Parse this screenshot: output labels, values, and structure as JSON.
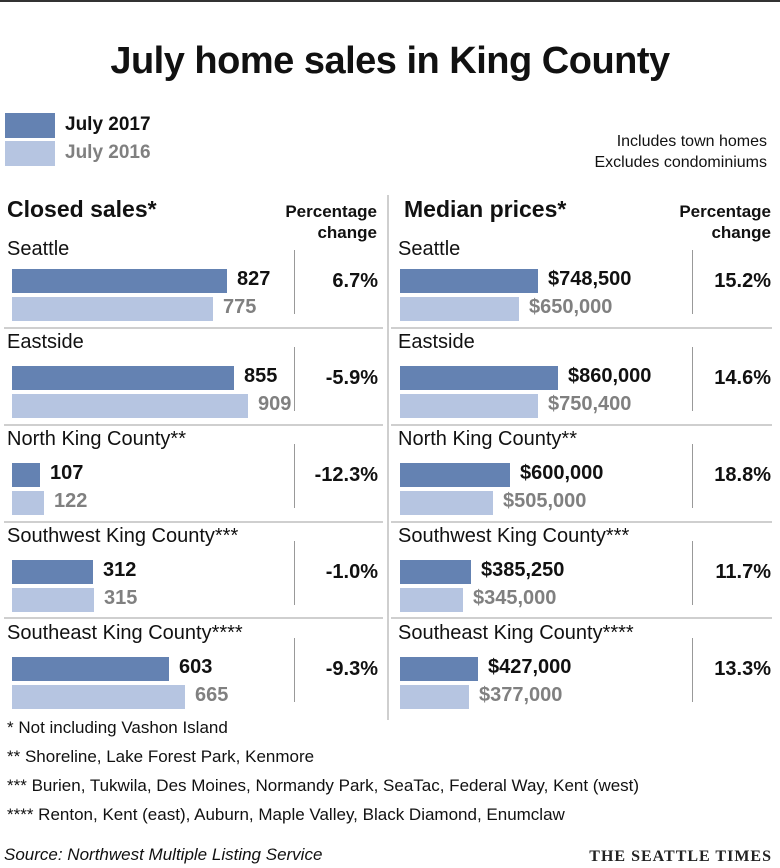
{
  "title": "July home sales in King County",
  "legend": [
    {
      "label": "July 2017",
      "color": "#6482b2",
      "text_color": "#111111"
    },
    {
      "label": "July 2016",
      "color": "#b6c5e1",
      "text_color": "#808080"
    }
  ],
  "notes": [
    "Includes town homes",
    "Excludes condominiums"
  ],
  "percentage_header": [
    "Percentage",
    "change"
  ],
  "chart_data": [
    {
      "type": "bar",
      "orientation": "horizontal",
      "title": "Closed sales*",
      "categories": [
        "Seattle",
        "Eastside",
        "North King County**",
        "Southwest King County***",
        "Southeast King County****"
      ],
      "series": [
        {
          "name": "July 2017",
          "values": [
            827,
            855,
            107,
            312,
            603
          ],
          "labels": [
            "827",
            "855",
            "107",
            "312",
            "603"
          ]
        },
        {
          "name": "July 2016",
          "values": [
            775,
            909,
            122,
            315,
            665
          ],
          "labels": [
            "775",
            "909",
            "122",
            "315",
            "665"
          ]
        }
      ],
      "percentage_change": [
        "6.7%",
        "-5.9%",
        "-12.3%",
        "-1.0%",
        "-9.3%"
      ],
      "xlim": [
        0,
        909
      ]
    },
    {
      "type": "bar",
      "orientation": "horizontal",
      "title": "Median prices*",
      "categories": [
        "Seattle",
        "Eastside",
        "North King County**",
        "Southwest King County***",
        "Southeast King County****"
      ],
      "series": [
        {
          "name": "July 2017",
          "values": [
            748500,
            860000,
            600000,
            385250,
            427000
          ],
          "labels": [
            "$748,500",
            "$860,000",
            "$600,000",
            "$385,250",
            "$427,000"
          ]
        },
        {
          "name": "July 2016",
          "values": [
            650000,
            750400,
            505000,
            345000,
            377000
          ],
          "labels": [
            "$650,000",
            "$750,400",
            "$505,000",
            "$345,000",
            "$377,000"
          ]
        }
      ],
      "percentage_change": [
        "15.2%",
        "14.6%",
        "18.8%",
        "11.7%",
        "13.3%"
      ],
      "xlim": [
        0,
        860000
      ]
    }
  ],
  "footnotes": [
    "* Not including Vashon Island",
    "**  Shoreline, Lake Forest Park, Kenmore",
    "*** Burien, Tukwila, Des Moines, Normandy Park, SeaTac, Federal Way, Kent (west)",
    "**** Renton, Kent (east), Auburn, Maple Valley, Black Diamond, Enumclaw"
  ],
  "source": "Source: Northwest Multiple Listing Service",
  "brand": "THE SEATTLE TIMES"
}
